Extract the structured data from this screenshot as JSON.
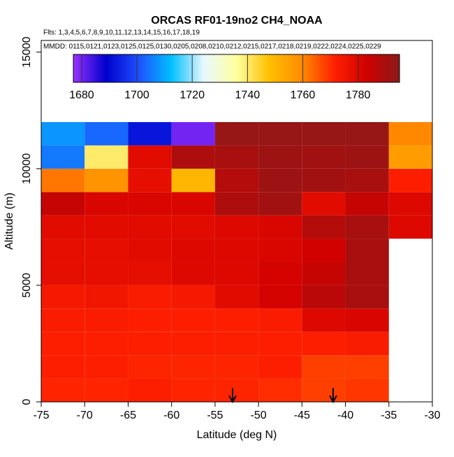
{
  "chart_data": {
    "type": "heatmap",
    "title": "ORCAS RF01-19no2 CH4_NOAA",
    "subtitle": "Flts: 1,3,4,5,6,7,8,9,10,11,12,13,14,15,16,17,18,19",
    "annotation": "MMDD: 0115,0121,0123,0125,0125,0130,0205,0208,0210,0212,0215,0217,0218,0219,0222,0224,0225,0229",
    "x_label": "Latitude (deg N)",
    "y_label": "Altitude (m)",
    "xlim": [
      -75,
      -30
    ],
    "xticks": [
      -75,
      -70,
      -65,
      -60,
      -55,
      -50,
      -45,
      -40,
      -35,
      -30
    ],
    "ylim": [
      0,
      15500
    ],
    "yticks": [
      0,
      5000,
      10000,
      15000
    ],
    "x_bins": [
      -75,
      -70,
      -65,
      -60,
      -55,
      -50,
      -45,
      -40,
      -35,
      -30
    ],
    "y_bins": [
      0,
      1000,
      2000,
      3000,
      4000,
      5000,
      6000,
      7000,
      8000,
      9000,
      10000,
      11000,
      12000
    ],
    "values": [
      [
        1771,
        1771,
        1772,
        1771,
        1771,
        1770,
        1768,
        1769,
        null
      ],
      [
        1772,
        1772,
        1771,
        1771,
        1771,
        1772,
        1768,
        1768,
        null
      ],
      [
        1772,
        1772,
        1772,
        1772,
        1772,
        1772,
        1772,
        1773,
        null
      ],
      [
        1773,
        1773,
        1772,
        1772,
        1772,
        1773,
        1780,
        1781,
        null
      ],
      [
        1774,
        1775,
        1773,
        1774,
        1779,
        1782,
        1787,
        1790,
        null
      ],
      [
        1778,
        1778,
        1778,
        1780,
        1780,
        1782,
        1785,
        1790,
        null
      ],
      [
        1778,
        1778,
        1779,
        1780,
        1780,
        1781,
        1783,
        1790,
        null
      ],
      [
        1779,
        1779,
        1779,
        1779,
        1780,
        1781,
        1788,
        1790,
        1780
      ],
      [
        1785,
        1781,
        1781,
        1781,
        1789,
        1791,
        1779,
        1785,
        1780
      ],
      [
        1762,
        1758,
        1778,
        1750,
        1788,
        1792,
        1791,
        1790,
        1772
      ],
      [
        1705,
        1740,
        1779,
        1789,
        1790,
        1792,
        1791,
        1792,
        1756
      ],
      [
        1708,
        1703,
        1692,
        1680,
        1793,
        1793,
        1793,
        1793,
        1760
      ]
    ],
    "clim": [
      1677,
      1795
    ],
    "cticks": [
      1680,
      1700,
      1720,
      1740,
      1760,
      1780
    ],
    "colors": [
      "#9b30ff",
      "#0000cd",
      "#1e50ff",
      "#00bfff",
      "#e8f8ff",
      "#ffffa0",
      "#ffc000",
      "#ff8c00",
      "#ff2000",
      "#d00000",
      "#8b1a1a"
    ]
  }
}
